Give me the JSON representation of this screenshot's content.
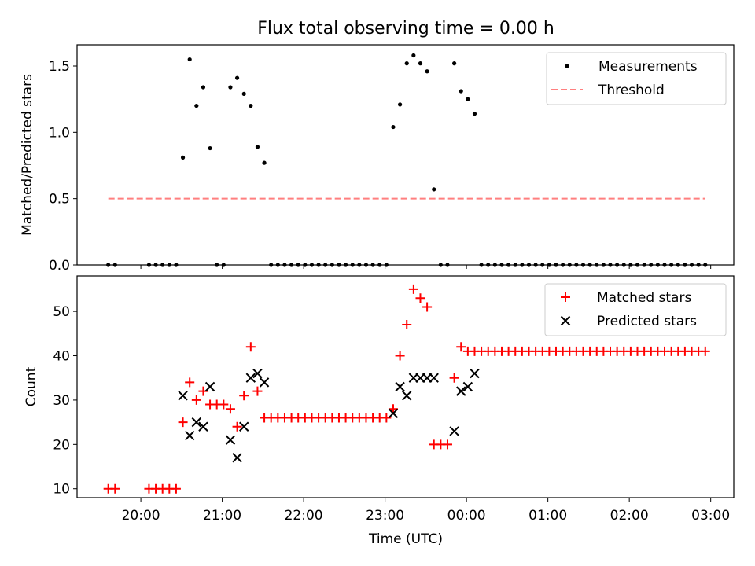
{
  "chart_data": [
    {
      "type": "scatter",
      "title": "Flux total observing time = 0.00 h",
      "ylabel": "Matched/Predicted stars",
      "xlabel": "",
      "xlim": [
        "19:13",
        "03:17"
      ],
      "ylim": [
        0,
        1.66
      ],
      "yticks": [
        "0.0",
        "0.5",
        "1.0",
        "1.5"
      ],
      "legend_position": "top-right",
      "grid": false,
      "series": [
        {
          "name": "Measurements",
          "marker": "dot",
          "color": "#000000",
          "points": [
            [
              "19:36",
              0
            ],
            [
              "19:41",
              0
            ],
            [
              "20:06",
              0
            ],
            [
              "20:11",
              0
            ],
            [
              "20:16",
              0
            ],
            [
              "20:21",
              0
            ],
            [
              "20:26",
              0
            ],
            [
              "20:31",
              0.81
            ],
            [
              "20:36",
              1.55
            ],
            [
              "20:41",
              1.2
            ],
            [
              "20:46",
              1.34
            ],
            [
              "20:51",
              0.88
            ],
            [
              "20:56",
              0
            ],
            [
              "21:01",
              0
            ],
            [
              "21:06",
              1.34
            ],
            [
              "21:11",
              1.41
            ],
            [
              "21:16",
              1.29
            ],
            [
              "21:21",
              1.2
            ],
            [
              "21:26",
              0.89
            ],
            [
              "21:31",
              0.77
            ],
            [
              "21:36",
              0
            ],
            [
              "21:41",
              0
            ],
            [
              "21:46",
              0
            ],
            [
              "21:51",
              0
            ],
            [
              "21:56",
              0
            ],
            [
              "22:01",
              0
            ],
            [
              "22:06",
              0
            ],
            [
              "22:11",
              0
            ],
            [
              "22:16",
              0
            ],
            [
              "22:21",
              0
            ],
            [
              "22:26",
              0
            ],
            [
              "22:31",
              0
            ],
            [
              "22:36",
              0
            ],
            [
              "22:41",
              0
            ],
            [
              "22:46",
              0
            ],
            [
              "22:51",
              0
            ],
            [
              "22:56",
              0
            ],
            [
              "23:01",
              0
            ],
            [
              "23:06",
              1.04
            ],
            [
              "23:11",
              1.21
            ],
            [
              "23:16",
              1.52
            ],
            [
              "23:21",
              1.58
            ],
            [
              "23:26",
              1.52
            ],
            [
              "23:31",
              1.46
            ],
            [
              "23:36",
              0.57
            ],
            [
              "23:41",
              0
            ],
            [
              "23:46",
              0
            ],
            [
              "23:51",
              1.52
            ],
            [
              "23:56",
              1.31
            ],
            [
              "00:01",
              1.25
            ],
            [
              "00:06",
              1.14
            ],
            [
              "00:11",
              0
            ],
            [
              "00:16",
              0
            ],
            [
              "00:21",
              0
            ],
            [
              "00:26",
              0
            ],
            [
              "00:31",
              0
            ],
            [
              "00:36",
              0
            ],
            [
              "00:41",
              0
            ],
            [
              "00:46",
              0
            ],
            [
              "00:51",
              0
            ],
            [
              "00:56",
              0
            ],
            [
              "01:01",
              0
            ],
            [
              "01:06",
              0
            ],
            [
              "01:11",
              0
            ],
            [
              "01:16",
              0
            ],
            [
              "01:21",
              0
            ],
            [
              "01:26",
              0
            ],
            [
              "01:31",
              0
            ],
            [
              "01:36",
              0
            ],
            [
              "01:41",
              0
            ],
            [
              "01:46",
              0
            ],
            [
              "01:51",
              0
            ],
            [
              "01:56",
              0
            ],
            [
              "02:01",
              0
            ],
            [
              "02:06",
              0
            ],
            [
              "02:11",
              0
            ],
            [
              "02:16",
              0
            ],
            [
              "02:21",
              0
            ],
            [
              "02:26",
              0
            ],
            [
              "02:31",
              0
            ],
            [
              "02:36",
              0
            ],
            [
              "02:41",
              0
            ],
            [
              "02:46",
              0
            ],
            [
              "02:51",
              0
            ],
            [
              "02:56",
              0
            ]
          ]
        },
        {
          "name": "Threshold",
          "marker": "dashed-line",
          "color": "#ff7f7f",
          "points": [
            [
              "19:36",
              0.5
            ],
            [
              "02:56",
              0.5
            ]
          ]
        }
      ]
    },
    {
      "type": "scatter",
      "title": "",
      "ylabel": "Count",
      "xlabel": "Time (UTC)",
      "xlim": [
        "19:13",
        "03:17"
      ],
      "ylim": [
        8,
        58
      ],
      "yticks": [
        "10",
        "20",
        "30",
        "40",
        "50"
      ],
      "xticks": [
        "20:00",
        "21:00",
        "22:00",
        "23:00",
        "00:00",
        "01:00",
        "02:00",
        "03:00"
      ],
      "legend_position": "top-right",
      "grid": false,
      "series": [
        {
          "name": "Matched stars",
          "marker": "plus",
          "color": "#ff0000",
          "points": [
            [
              "19:36",
              10
            ],
            [
              "19:41",
              10
            ],
            [
              "20:06",
              10
            ],
            [
              "20:11",
              10
            ],
            [
              "20:16",
              10
            ],
            [
              "20:21",
              10
            ],
            [
              "20:26",
              10
            ],
            [
              "20:31",
              25
            ],
            [
              "20:36",
              34
            ],
            [
              "20:41",
              30
            ],
            [
              "20:46",
              32
            ],
            [
              "20:51",
              29
            ],
            [
              "20:56",
              29
            ],
            [
              "21:01",
              29
            ],
            [
              "21:06",
              28
            ],
            [
              "21:11",
              24
            ],
            [
              "21:16",
              31
            ],
            [
              "21:21",
              42
            ],
            [
              "21:26",
              32
            ],
            [
              "21:31",
              26
            ],
            [
              "21:36",
              26
            ],
            [
              "21:41",
              26
            ],
            [
              "21:46",
              26
            ],
            [
              "21:51",
              26
            ],
            [
              "21:56",
              26
            ],
            [
              "22:01",
              26
            ],
            [
              "22:06",
              26
            ],
            [
              "22:11",
              26
            ],
            [
              "22:16",
              26
            ],
            [
              "22:21",
              26
            ],
            [
              "22:26",
              26
            ],
            [
              "22:31",
              26
            ],
            [
              "22:36",
              26
            ],
            [
              "22:41",
              26
            ],
            [
              "22:46",
              26
            ],
            [
              "22:51",
              26
            ],
            [
              "22:56",
              26
            ],
            [
              "23:01",
              26
            ],
            [
              "23:06",
              28
            ],
            [
              "23:11",
              40
            ],
            [
              "23:16",
              47
            ],
            [
              "23:21",
              55
            ],
            [
              "23:26",
              53
            ],
            [
              "23:31",
              51
            ],
            [
              "23:36",
              20
            ],
            [
              "23:41",
              20
            ],
            [
              "23:46",
              20
            ],
            [
              "23:51",
              35
            ],
            [
              "23:56",
              42
            ],
            [
              "00:01",
              41
            ],
            [
              "00:06",
              41
            ],
            [
              "00:11",
              41
            ],
            [
              "00:16",
              41
            ],
            [
              "00:21",
              41
            ],
            [
              "00:26",
              41
            ],
            [
              "00:31",
              41
            ],
            [
              "00:36",
              41
            ],
            [
              "00:41",
              41
            ],
            [
              "00:46",
              41
            ],
            [
              "00:51",
              41
            ],
            [
              "00:56",
              41
            ],
            [
              "01:01",
              41
            ],
            [
              "01:06",
              41
            ],
            [
              "01:11",
              41
            ],
            [
              "01:16",
              41
            ],
            [
              "01:21",
              41
            ],
            [
              "01:26",
              41
            ],
            [
              "01:31",
              41
            ],
            [
              "01:36",
              41
            ],
            [
              "01:41",
              41
            ],
            [
              "01:46",
              41
            ],
            [
              "01:51",
              41
            ],
            [
              "01:56",
              41
            ],
            [
              "02:01",
              41
            ],
            [
              "02:06",
              41
            ],
            [
              "02:11",
              41
            ],
            [
              "02:16",
              41
            ],
            [
              "02:21",
              41
            ],
            [
              "02:26",
              41
            ],
            [
              "02:31",
              41
            ],
            [
              "02:36",
              41
            ],
            [
              "02:41",
              41
            ],
            [
              "02:46",
              41
            ],
            [
              "02:51",
              41
            ],
            [
              "02:56",
              41
            ]
          ]
        },
        {
          "name": "Predicted stars",
          "marker": "x",
          "color": "#000000",
          "points": [
            [
              "20:31",
              31
            ],
            [
              "20:36",
              22
            ],
            [
              "20:41",
              25
            ],
            [
              "20:46",
              24
            ],
            [
              "20:51",
              33
            ],
            [
              "21:06",
              21
            ],
            [
              "21:11",
              17
            ],
            [
              "21:16",
              24
            ],
            [
              "21:21",
              35
            ],
            [
              "21:26",
              36
            ],
            [
              "21:31",
              34
            ],
            [
              "23:06",
              27
            ],
            [
              "23:11",
              33
            ],
            [
              "23:16",
              31
            ],
            [
              "23:21",
              35
            ],
            [
              "23:26",
              35
            ],
            [
              "23:31",
              35
            ],
            [
              "23:36",
              35
            ],
            [
              "23:51",
              23
            ],
            [
              "23:56",
              32
            ],
            [
              "00:01",
              33
            ],
            [
              "00:06",
              36
            ]
          ]
        }
      ]
    }
  ]
}
